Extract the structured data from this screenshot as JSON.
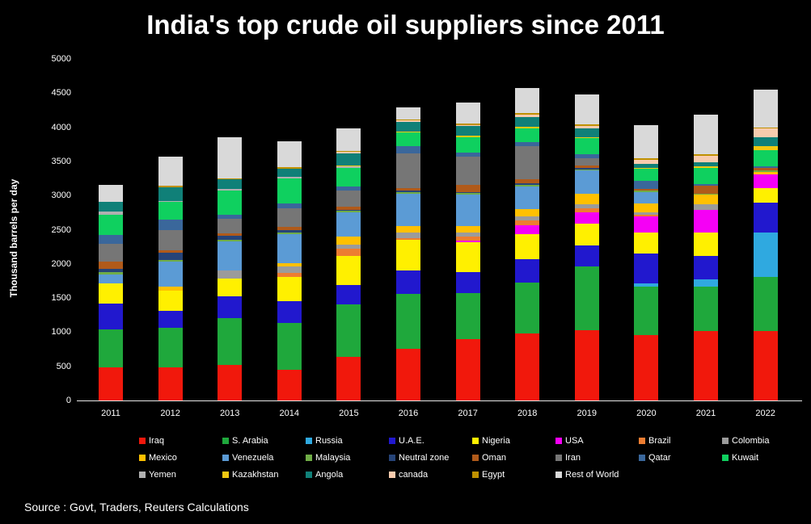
{
  "page": {
    "background_color": "#000000",
    "text_color": "#FFFFFF",
    "source": "Source : Govt, Traders, Reuters Calculations"
  },
  "chart_data": {
    "type": "bar",
    "stacked": true,
    "title": "India's top crude oil suppliers since 2011",
    "xlabel": "",
    "ylabel": "Thousand barrels per day",
    "ylim": [
      0,
      5000
    ],
    "ytick_interval": 500,
    "grid": false,
    "legend_position": "bottom",
    "categories": [
      "2011",
      "2012",
      "2013",
      "2014",
      "2015",
      "2016",
      "2017",
      "2018",
      "2019",
      "2020",
      "2021",
      "2022"
    ],
    "series": [
      {
        "name": "Iraq",
        "color": "#F1180C",
        "values": [
          480,
          480,
          520,
          445,
          640,
          760,
          900,
          980,
          1030,
          960,
          1020,
          1020
        ]
      },
      {
        "name": "S. Arabia",
        "color": "#1FA83C",
        "values": [
          555,
          585,
          690,
          690,
          770,
          805,
          670,
          750,
          930,
          710,
          650,
          790
        ]
      },
      {
        "name": "Russia",
        "color": "#2FA9E0",
        "values": [
          0,
          0,
          0,
          0,
          0,
          0,
          0,
          0,
          0,
          50,
          100,
          650
        ]
      },
      {
        "name": "U.A.E.",
        "color": "#2118CE",
        "values": [
          385,
          250,
          315,
          315,
          275,
          335,
          315,
          335,
          315,
          430,
          350,
          435
        ]
      },
      {
        "name": "Nigeria",
        "color": "#FFF000",
        "values": [
          300,
          295,
          265,
          355,
          435,
          455,
          435,
          375,
          315,
          315,
          335,
          215
        ]
      },
      {
        "name": "USA",
        "color": "#F500F5",
        "values": [
          0,
          0,
          0,
          0,
          0,
          0,
          20,
          120,
          160,
          235,
          335,
          195
        ]
      },
      {
        "name": "Brazil",
        "color": "#ED7D31",
        "values": [
          0,
          0,
          0,
          60,
          100,
          20,
          60,
          80,
          60,
          20,
          0,
          0
        ]
      },
      {
        "name": "Colombia",
        "color": "#9B9B9B",
        "values": [
          0,
          0,
          110,
          100,
          60,
          80,
          60,
          60,
          60,
          40,
          80,
          0
        ]
      },
      {
        "name": "Mexico",
        "color": "#FFC000",
        "values": [
          0,
          60,
          0,
          40,
          120,
          100,
          100,
          100,
          160,
          120,
          140,
          40
        ]
      },
      {
        "name": "Venezuela",
        "color": "#5B9BD5",
        "values": [
          130,
          360,
          430,
          435,
          355,
          475,
          455,
          335,
          335,
          175,
          0,
          0
        ]
      },
      {
        "name": "Malaysia",
        "color": "#70AD47",
        "values": [
          30,
          25,
          20,
          20,
          20,
          20,
          20,
          20,
          20,
          20,
          20,
          20
        ]
      },
      {
        "name": "Neutral zone",
        "color": "#264478",
        "values": [
          50,
          110,
          60,
          40,
          20,
          20,
          20,
          20,
          20,
          0,
          0,
          0
        ]
      },
      {
        "name": "Oman",
        "color": "#B05A1A",
        "values": [
          100,
          40,
          40,
          40,
          40,
          40,
          100,
          60,
          40,
          20,
          120,
          40
        ]
      },
      {
        "name": "Iran",
        "color": "#767676",
        "values": [
          270,
          290,
          210,
          280,
          235,
          510,
          420,
          490,
          100,
          0,
          0,
          0
        ]
      },
      {
        "name": "Qatar",
        "color": "#3A679B",
        "values": [
          120,
          150,
          60,
          60,
          60,
          100,
          60,
          60,
          60,
          120,
          20,
          20
        ]
      },
      {
        "name": "Kuwait",
        "color": "#0FD05F",
        "values": [
          305,
          260,
          360,
          375,
          275,
          200,
          220,
          200,
          235,
          175,
          235,
          235
        ]
      },
      {
        "name": "Yemen",
        "color": "#B0B0B0",
        "values": [
          40,
          20,
          20,
          20,
          20,
          0,
          0,
          0,
          0,
          0,
          0,
          0
        ]
      },
      {
        "name": "Kazakhstan",
        "color": "#F2C811",
        "values": [
          0,
          0,
          0,
          0,
          20,
          20,
          20,
          20,
          20,
          20,
          20,
          60
        ]
      },
      {
        "name": "Angola",
        "color": "#108078",
        "values": [
          140,
          200,
          135,
          120,
          175,
          140,
          140,
          140,
          120,
          60,
          60,
          140
        ]
      },
      {
        "name": "canada",
        "color": "#F8CBAD",
        "values": [
          0,
          0,
          0,
          0,
          20,
          20,
          20,
          40,
          40,
          60,
          100,
          120
        ]
      },
      {
        "name": "Egypt",
        "color": "#BF9000",
        "values": [
          0,
          20,
          20,
          20,
          20,
          20,
          20,
          20,
          20,
          20,
          20,
          20
        ]
      },
      {
        "name": "Rest of World",
        "color": "#D9D9D9",
        "values": [
          255,
          425,
          595,
          385,
          320,
          170,
          305,
          375,
          440,
          480,
          585,
          550
        ]
      }
    ],
    "approx_totals": [
      3160,
      3570,
      3850,
      3800,
      3980,
      4290,
      4360,
      4580,
      4480,
      4030,
      4190,
      4550
    ]
  }
}
